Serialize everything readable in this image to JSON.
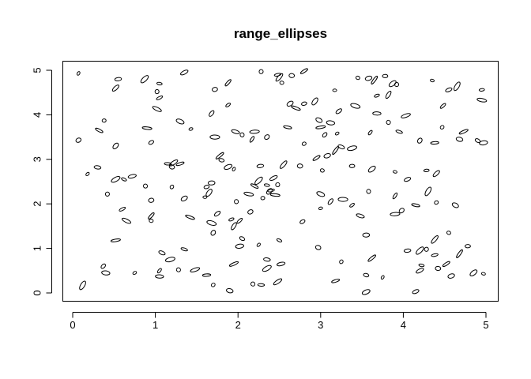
{
  "chart_data": {
    "type": "scatter",
    "title": "range_ellipses",
    "xlabel": "",
    "ylabel": "",
    "xlim": [
      0,
      5
    ],
    "ylim": [
      0,
      5
    ],
    "x_ticks": [
      "0",
      "1",
      "2",
      "3",
      "4",
      "5"
    ],
    "y_ticks": [
      "0",
      "1",
      "2",
      "3",
      "4",
      "5"
    ],
    "grid": false,
    "marker": "ellipse",
    "points": [
      [
        0.07,
        4.93
      ],
      [
        0.55,
        4.8
      ],
      [
        0.87,
        4.8
      ],
      [
        1.05,
        4.7
      ],
      [
        1.35,
        4.95
      ],
      [
        2.28,
        4.97
      ],
      [
        2.48,
        4.9
      ],
      [
        2.5,
        4.84
      ],
      [
        2.65,
        4.88
      ],
      [
        2.8,
        4.98
      ],
      [
        3.45,
        4.83
      ],
      [
        3.58,
        4.82
      ],
      [
        3.65,
        4.78
      ],
      [
        3.78,
        4.87
      ],
      [
        3.87,
        4.7
      ],
      [
        4.35,
        4.77
      ],
      [
        4.55,
        4.56
      ],
      [
        4.65,
        4.64
      ],
      [
        4.95,
        4.56
      ],
      [
        0.52,
        4.6
      ],
      [
        1.02,
        4.52
      ],
      [
        1.05,
        4.38
      ],
      [
        1.02,
        4.13
      ],
      [
        1.72,
        4.57
      ],
      [
        1.88,
        4.72
      ],
      [
        2.53,
        4.72
      ],
      [
        2.63,
        4.25
      ],
      [
        2.7,
        4.15
      ],
      [
        2.8,
        4.25
      ],
      [
        2.93,
        4.3
      ],
      [
        3.17,
        4.55
      ],
      [
        3.22,
        4.08
      ],
      [
        3.42,
        4.2
      ],
      [
        3.68,
        4.43
      ],
      [
        3.82,
        4.45
      ],
      [
        3.92,
        4.68
      ],
      [
        4.48,
        4.2
      ],
      [
        4.95,
        4.33
      ],
      [
        0.07,
        3.43
      ],
      [
        0.32,
        3.65
      ],
      [
        0.38,
        3.87
      ],
      [
        0.52,
        3.3
      ],
      [
        0.9,
        3.7
      ],
      [
        0.95,
        3.38
      ],
      [
        1.3,
        3.85
      ],
      [
        1.43,
        3.68
      ],
      [
        1.68,
        4.03
      ],
      [
        1.72,
        3.5
      ],
      [
        1.88,
        4.22
      ],
      [
        1.97,
        3.62
      ],
      [
        2.05,
        3.55
      ],
      [
        2.17,
        3.45
      ],
      [
        2.2,
        3.62
      ],
      [
        2.35,
        3.5
      ],
      [
        2.6,
        3.72
      ],
      [
        2.8,
        3.35
      ],
      [
        2.98,
        3.88
      ],
      [
        3.0,
        3.72
      ],
      [
        3.05,
        3.55
      ],
      [
        3.12,
        3.82
      ],
      [
        3.2,
        3.58
      ],
      [
        3.25,
        3.28
      ],
      [
        3.38,
        3.25
      ],
      [
        3.6,
        3.6
      ],
      [
        3.68,
        4.03
      ],
      [
        3.82,
        3.83
      ],
      [
        3.95,
        3.62
      ],
      [
        4.03,
        3.98
      ],
      [
        4.2,
        3.42
      ],
      [
        4.38,
        3.37
      ],
      [
        4.47,
        3.72
      ],
      [
        4.68,
        3.45
      ],
      [
        4.73,
        3.62
      ],
      [
        4.9,
        3.42
      ],
      [
        4.97,
        3.37
      ],
      [
        0.18,
        2.67
      ],
      [
        0.3,
        2.82
      ],
      [
        0.52,
        2.55
      ],
      [
        0.62,
        2.55
      ],
      [
        0.72,
        2.62
      ],
      [
        0.88,
        2.4
      ],
      [
        1.15,
        2.9
      ],
      [
        1.22,
        2.92
      ],
      [
        1.2,
        2.83
      ],
      [
        1.3,
        2.9
      ],
      [
        1.2,
        2.38
      ],
      [
        1.68,
        2.47
      ],
      [
        1.78,
        3.08
      ],
      [
        1.8,
        2.98
      ],
      [
        1.88,
        2.83
      ],
      [
        1.95,
        2.78
      ],
      [
        2.27,
        2.85
      ],
      [
        2.25,
        2.52
      ],
      [
        2.35,
        2.42
      ],
      [
        2.43,
        2.58
      ],
      [
        2.48,
        2.43
      ],
      [
        2.4,
        2.3
      ],
      [
        2.55,
        2.88
      ],
      [
        2.75,
        2.85
      ],
      [
        2.95,
        3.03
      ],
      [
        3.02,
        2.75
      ],
      [
        3.08,
        3.08
      ],
      [
        3.18,
        3.2
      ],
      [
        3.38,
        2.85
      ],
      [
        3.62,
        2.78
      ],
      [
        3.9,
        2.72
      ],
      [
        4.05,
        2.55
      ],
      [
        4.3,
        2.28
      ],
      [
        4.28,
        2.75
      ],
      [
        4.4,
        2.68
      ],
      [
        0.42,
        2.22
      ],
      [
        0.6,
        1.88
      ],
      [
        0.65,
        1.62
      ],
      [
        0.95,
        2.08
      ],
      [
        0.95,
        1.73
      ],
      [
        0.95,
        1.62
      ],
      [
        1.35,
        2.12
      ],
      [
        1.42,
        1.7
      ],
      [
        1.62,
        2.38
      ],
      [
        1.65,
        2.25
      ],
      [
        1.6,
        2.15
      ],
      [
        1.75,
        1.78
      ],
      [
        1.68,
        1.57
      ],
      [
        1.92,
        1.65
      ],
      [
        1.95,
        1.5
      ],
      [
        1.98,
        2.05
      ],
      [
        2.02,
        1.62
      ],
      [
        2.13,
        2.22
      ],
      [
        2.15,
        1.82
      ],
      [
        2.2,
        2.4
      ],
      [
        2.3,
        2.13
      ],
      [
        2.38,
        2.28
      ],
      [
        2.45,
        2.2
      ],
      [
        2.78,
        1.6
      ],
      [
        3.0,
        2.22
      ],
      [
        3.0,
        1.9
      ],
      [
        3.12,
        2.05
      ],
      [
        3.27,
        2.1
      ],
      [
        3.38,
        1.97
      ],
      [
        3.48,
        1.73
      ],
      [
        3.58,
        2.28
      ],
      [
        3.9,
        2.18
      ],
      [
        3.9,
        1.77
      ],
      [
        3.98,
        1.85
      ],
      [
        4.15,
        1.97
      ],
      [
        4.4,
        2.03
      ],
      [
        4.63,
        1.97
      ],
      [
        0.52,
        1.18
      ],
      [
        0.37,
        0.6
      ],
      [
        0.4,
        0.45
      ],
      [
        0.75,
        0.45
      ],
      [
        1.08,
        0.9
      ],
      [
        1.18,
        0.75
      ],
      [
        1.05,
        0.5
      ],
      [
        1.05,
        0.37
      ],
      [
        1.28,
        0.52
      ],
      [
        1.35,
        0.98
      ],
      [
        1.48,
        0.52
      ],
      [
        1.7,
        1.35
      ],
      [
        1.62,
        0.4
      ],
      [
        1.7,
        0.18
      ],
      [
        1.9,
        0.05
      ],
      [
        1.95,
        0.65
      ],
      [
        2.05,
        1.22
      ],
      [
        2.02,
        1.05
      ],
      [
        2.25,
        1.08
      ],
      [
        2.35,
        0.75
      ],
      [
        2.35,
        0.55
      ],
      [
        2.5,
        1.18
      ],
      [
        2.52,
        0.65
      ],
      [
        2.18,
        0.2
      ],
      [
        2.28,
        0.18
      ],
      [
        2.48,
        0.25
      ],
      [
        2.97,
        1.02
      ],
      [
        3.18,
        0.27
      ],
      [
        3.25,
        0.7
      ],
      [
        3.55,
        1.3
      ],
      [
        3.62,
        0.78
      ],
      [
        3.55,
        0.4
      ],
      [
        3.55,
        0.02
      ],
      [
        3.75,
        0.35
      ],
      [
        4.05,
        0.95
      ],
      [
        4.2,
        0.95
      ],
      [
        4.22,
        0.62
      ],
      [
        4.2,
        0.5
      ],
      [
        4.28,
        0.98
      ],
      [
        4.38,
        0.85
      ],
      [
        4.38,
        1.2
      ],
      [
        4.42,
        0.55
      ],
      [
        4.52,
        0.65
      ],
      [
        4.55,
        1.35
      ],
      [
        4.58,
        0.38
      ],
      [
        4.68,
        0.88
      ],
      [
        4.78,
        1.05
      ],
      [
        4.85,
        0.45
      ],
      [
        4.97,
        0.43
      ],
      [
        4.15,
        0.03
      ],
      [
        0.12,
        0.17
      ]
    ]
  }
}
